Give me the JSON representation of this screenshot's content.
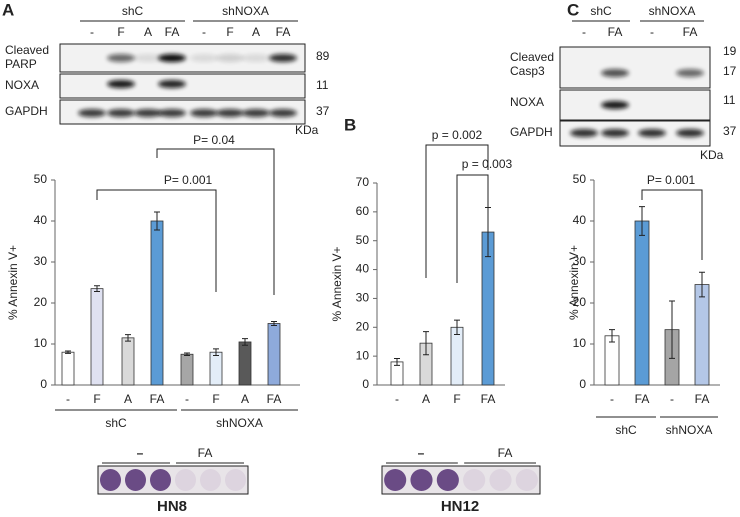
{
  "figure": {
    "panel_labels": [
      "A",
      "B",
      "C"
    ],
    "blots": [
      {
        "groups": [
          "shC",
          "shNOXA"
        ],
        "lanes": [
          "-",
          "F",
          "A",
          "FA",
          "-",
          "F",
          "A",
          "FA"
        ],
        "rows": [
          "Cleaved PARP",
          "NOXA",
          "GAPDH"
        ],
        "sizes": [
          "89",
          "11",
          "37"
        ],
        "unit": "KDa"
      },
      {
        "groups": [
          "shC",
          "shNOXA"
        ],
        "lanes": [
          "-",
          "FA",
          "-",
          "FA"
        ],
        "rows": [
          "Cleaved Casp3",
          "NOXA",
          "GAPDH"
        ],
        "sizes": [
          "19",
          "17",
          "11",
          "37"
        ],
        "unit": "KDa"
      }
    ],
    "plates": [
      {
        "labels": [
          "–",
          "FA"
        ],
        "cell_line": "HN8"
      },
      {
        "labels": [
          "–",
          "FA"
        ],
        "cell_line": "HN12"
      }
    ]
  },
  "chart_data": [
    {
      "type": "bar",
      "y_label": "% Annexin V+",
      "categories": [
        "-",
        "F",
        "A",
        "FA",
        "-",
        "F",
        "A",
        "FA"
      ],
      "values": [
        8,
        23.5,
        11.5,
        40,
        7.5,
        8,
        10.5,
        15
      ],
      "errors": [
        0.3,
        0.7,
        0.8,
        2.2,
        0.3,
        0.8,
        0.8,
        0.5
      ],
      "colors": [
        "#ffffff",
        "#dfe1f1",
        "#d9d9d9",
        "#5b9bd5",
        "#a6a6a6",
        "#e3edf8",
        "#595959",
        "#8eaadb"
      ],
      "groups": [
        "shC",
        "shNOXA"
      ],
      "annotations": [
        "P= 0.001",
        "P= 0.04"
      ],
      "ylim": [
        0,
        50
      ],
      "yticks": [
        0,
        10,
        20,
        30,
        40,
        50
      ]
    },
    {
      "type": "bar",
      "y_label": "% Annexin V+",
      "categories": [
        "-",
        "A",
        "F",
        "FA"
      ],
      "values": [
        8,
        14.5,
        20,
        53
      ],
      "errors": [
        1.2,
        4,
        2.5,
        8.5
      ],
      "colors": [
        "#ffffff",
        "#d9d9d9",
        "#e3edf8",
        "#5b9bd5"
      ],
      "annotations": [
        "p = 0.002",
        "p = 0.003"
      ],
      "ylim": [
        0,
        70
      ],
      "yticks": [
        0,
        10,
        20,
        30,
        40,
        50,
        60,
        70
      ]
    },
    {
      "type": "bar",
      "y_label": "% Annexin V+",
      "categories": [
        "-",
        "FA",
        "-",
        "FA"
      ],
      "values": [
        12,
        40,
        13.5,
        24.5
      ],
      "errors": [
        1.5,
        3.5,
        7,
        3
      ],
      "colors": [
        "#ffffff",
        "#5b9bd5",
        "#a5a5a5",
        "#b4c7e7"
      ],
      "groups": [
        "shC",
        "shNOXA"
      ],
      "annotations": [
        "P= 0.001"
      ],
      "ylim": [
        0,
        50
      ],
      "yticks": [
        0,
        10,
        20,
        30,
        40,
        50
      ]
    }
  ]
}
